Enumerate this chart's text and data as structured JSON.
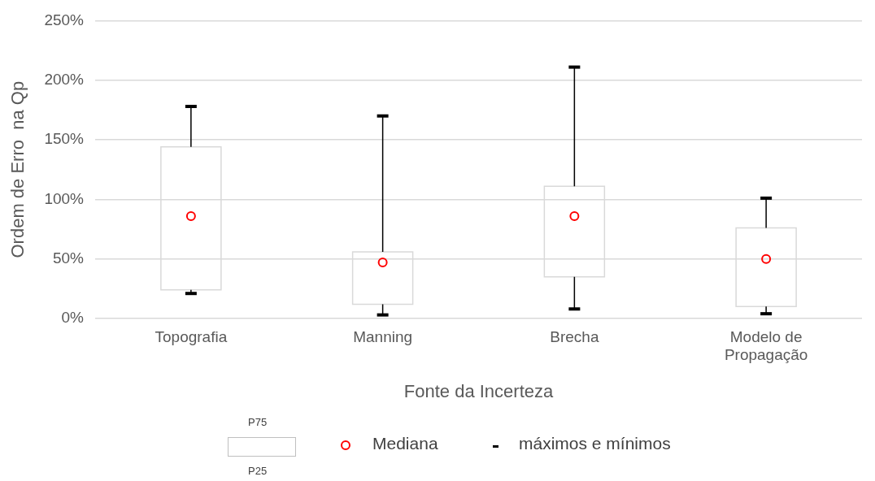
{
  "chart_data": {
    "type": "box",
    "xlabel": "Fonte da Incerteza",
    "ylabel": "Ordem de Erro  na Qp",
    "categories": [
      "Topografia",
      "Manning",
      "Brecha",
      "Modelo de Propagação"
    ],
    "color": "#d9d9d9",
    "boxes": [
      {
        "low": 21,
        "q1": 24,
        "median": 86,
        "q3": 144,
        "high": 178
      },
      {
        "low": 3,
        "q1": 12,
        "median": 47,
        "q3": 56,
        "high": 170
      },
      {
        "low": 8,
        "q1": 35,
        "median": 86,
        "q3": 111,
        "high": 211
      },
      {
        "low": 4,
        "q1": 10,
        "median": 50,
        "q3": 76,
        "high": 101
      }
    ],
    "ylim": [
      0,
      250
    ],
    "yticks": [
      {
        "value": 0,
        "label": "0%"
      },
      {
        "value": 50,
        "label": "50%"
      },
      {
        "value": 100,
        "label": "100%"
      },
      {
        "value": 150,
        "label": "150%"
      },
      {
        "value": 200,
        "label": "200%"
      },
      {
        "value": 250,
        "label": "250%"
      }
    ],
    "grid": "y",
    "annotations": [
      "P75",
      "P25",
      "Mediana",
      "máximos e mínimos"
    ]
  }
}
